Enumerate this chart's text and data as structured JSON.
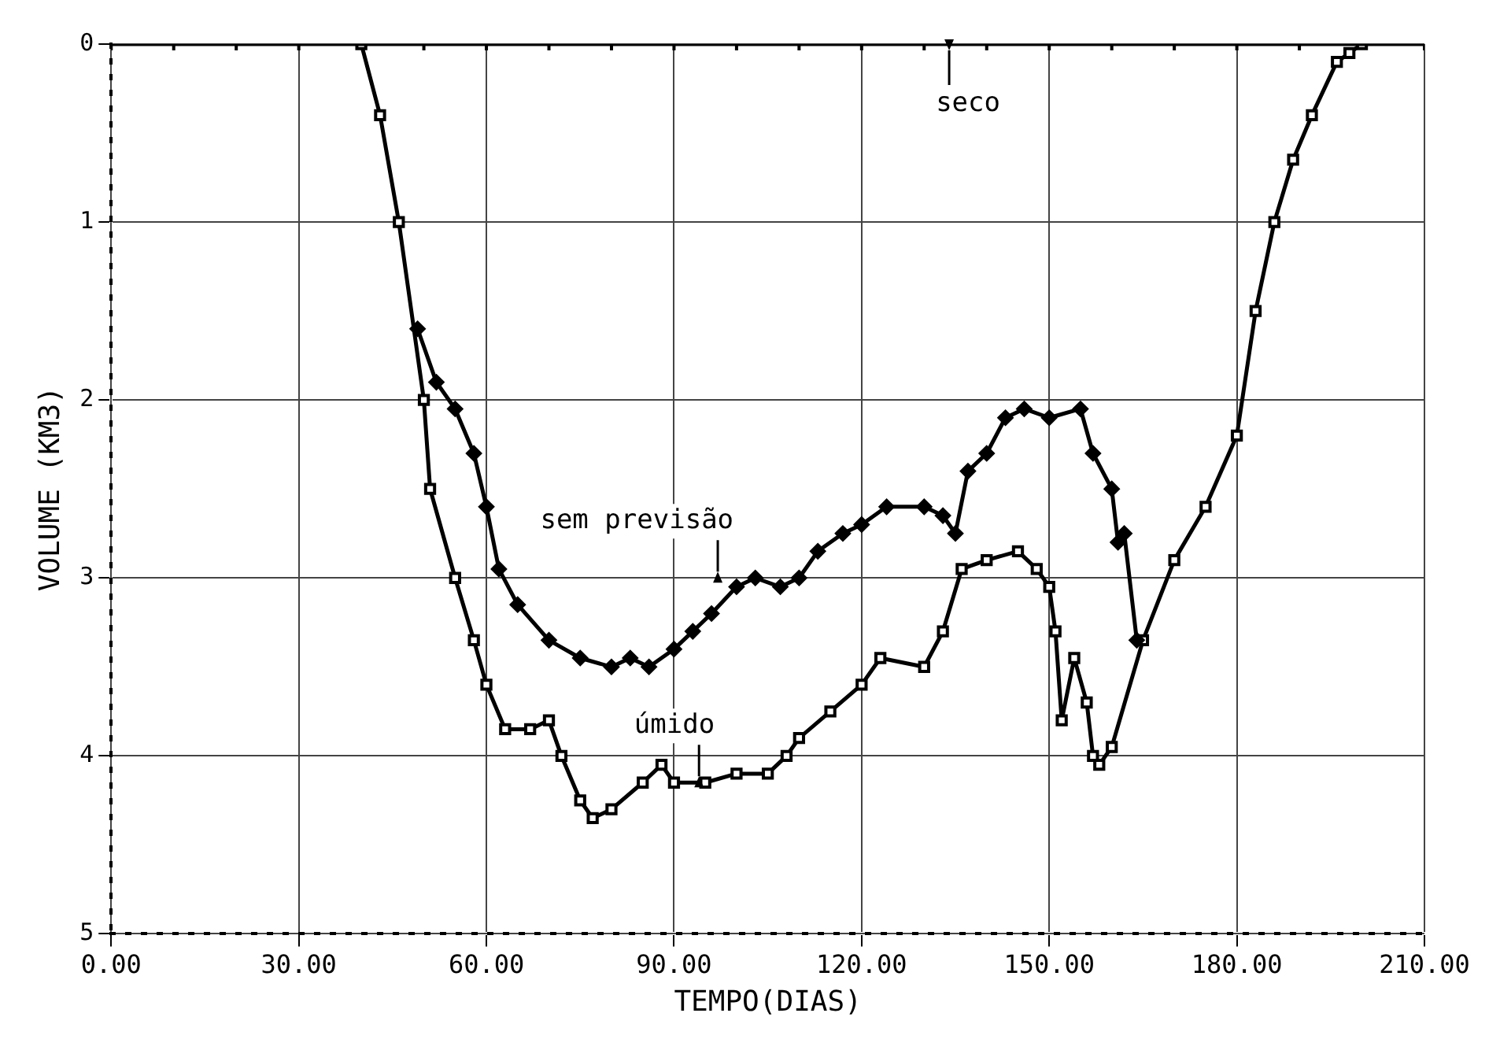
{
  "chart_data": {
    "type": "line",
    "xlabel": "TEMPO(DIAS)",
    "ylabel": "VOLUME (KM3)",
    "xlim": [
      0,
      210
    ],
    "xticks": [
      {
        "value": 0,
        "label": "0.00"
      },
      {
        "value": 30,
        "label": "30.00"
      },
      {
        "value": 60,
        "label": "60.00"
      },
      {
        "value": 90,
        "label": "90.00"
      },
      {
        "value": 120,
        "label": "120.00"
      },
      {
        "value": 150,
        "label": "150.00"
      },
      {
        "value": 180,
        "label": "180.00"
      },
      {
        "value": 210,
        "label": "210.00"
      }
    ],
    "ylim": [
      5,
      0
    ],
    "yticks": [
      0,
      1,
      2,
      3,
      4,
      5
    ],
    "grid": true,
    "line_style": "solid",
    "series": [
      {
        "color": "#000000",
        "marker": "cross",
        "x": [
          0,
          10,
          20,
          30,
          50,
          60,
          70,
          80,
          90,
          100,
          110,
          120,
          130,
          140,
          150,
          160,
          170,
          180,
          190,
          210
        ],
        "values": [
          0,
          0,
          0,
          0,
          0,
          0,
          0,
          0,
          0,
          0,
          0,
          0,
          0,
          0,
          0,
          0,
          0,
          0,
          0,
          0
        ]
      },
      {
        "color": "#000000",
        "marker": "diamond",
        "x": [
          49,
          52,
          55,
          58,
          60,
          62,
          65,
          70,
          75,
          80,
          83,
          86,
          90,
          93,
          96,
          100,
          103,
          107,
          110,
          113,
          117,
          120,
          124,
          130,
          133,
          135,
          137,
          140,
          143,
          146,
          150,
          155,
          157,
          160,
          161,
          162,
          164
        ],
        "values": [
          1.6,
          1.9,
          2.05,
          2.3,
          2.6,
          2.95,
          3.15,
          3.35,
          3.45,
          3.5,
          3.45,
          3.5,
          3.4,
          3.3,
          3.2,
          3.05,
          3.0,
          3.05,
          3.0,
          2.85,
          2.75,
          2.7,
          2.6,
          2.6,
          2.65,
          2.75,
          2.4,
          2.3,
          2.1,
          2.05,
          2.1,
          2.05,
          2.3,
          2.5,
          2.8,
          2.75,
          3.35
        ]
      },
      {
        "color": "#000000",
        "marker": "square",
        "x": [
          40,
          43,
          46,
          50,
          51,
          55,
          58,
          60,
          63,
          67,
          70,
          72,
          75,
          77,
          80,
          85,
          88,
          90,
          95,
          100,
          105,
          108,
          110,
          115,
          120,
          123,
          130,
          133,
          136,
          140,
          145,
          148,
          150,
          151,
          152,
          154,
          156,
          157,
          158,
          160,
          165,
          170,
          175,
          180,
          183,
          186,
          189,
          192,
          196,
          198,
          200
        ],
        "values": [
          0,
          0.4,
          1.0,
          2.0,
          2.5,
          3.0,
          3.35,
          3.6,
          3.85,
          3.85,
          3.8,
          4.0,
          4.25,
          4.35,
          4.3,
          4.15,
          4.05,
          4.15,
          4.15,
          4.1,
          4.1,
          4.0,
          3.9,
          3.75,
          3.6,
          3.45,
          3.5,
          3.3,
          2.95,
          2.9,
          2.85,
          2.95,
          3.05,
          3.3,
          3.8,
          3.45,
          3.7,
          4.0,
          4.05,
          3.95,
          3.35,
          2.9,
          2.6,
          2.2,
          1.5,
          1.0,
          0.65,
          0.4,
          0.1,
          0.05,
          0
        ]
      }
    ],
    "annotations": [
      {
        "text": "seco",
        "x": 134,
        "y": 0
      },
      {
        "text": "sem previsão",
        "x": 97,
        "y": 3.0
      },
      {
        "text": "úmido",
        "x": 94,
        "y": 4.15
      }
    ]
  }
}
